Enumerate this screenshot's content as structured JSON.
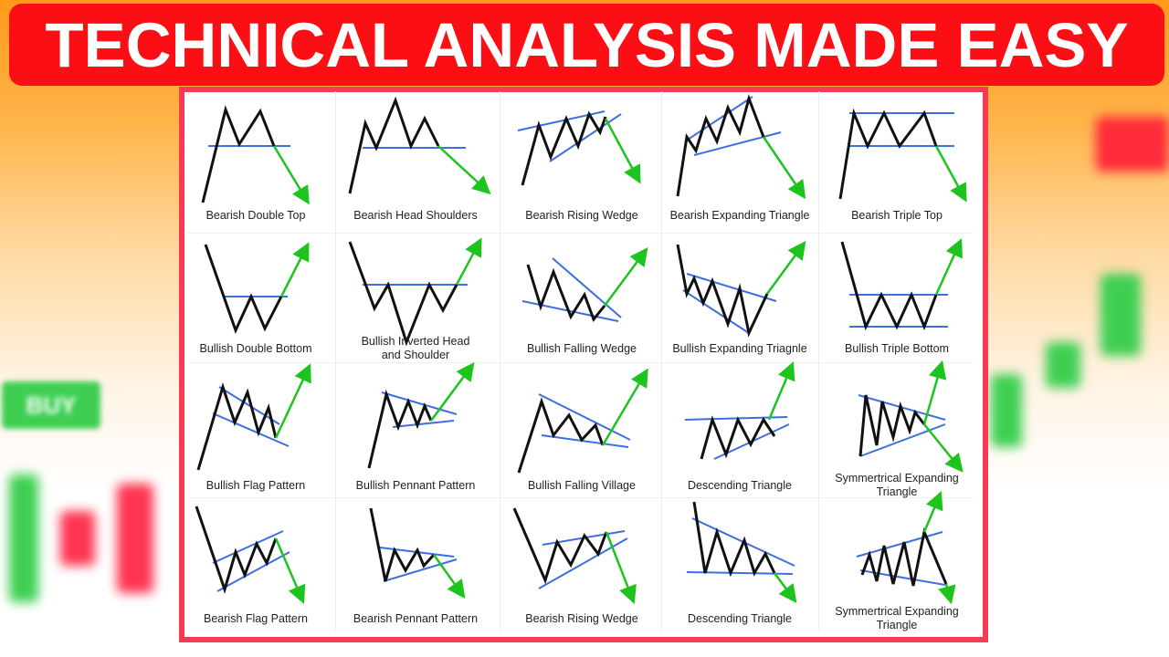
{
  "title": "TECHNICAL ANALYSIS MADE EASY",
  "background_sign": "BUY",
  "colors": {
    "banner": "#fb0f14",
    "card_border": "#f83a55",
    "price_line": "#111111",
    "trend_line": "#3d6fe0",
    "breakout_arrow": "#1ec41e"
  },
  "patterns": [
    {
      "label": "Bearish Double Top",
      "breakout": "down"
    },
    {
      "label": "Bearish Head Shoulders",
      "breakout": "down"
    },
    {
      "label": "Bearish Rising Wedge",
      "breakout": "down"
    },
    {
      "label": "Bearish Expanding Triangle",
      "breakout": "down"
    },
    {
      "label": "Bearish Triple Top",
      "breakout": "down"
    },
    {
      "label": "Bullish Double Bottom",
      "breakout": "up"
    },
    {
      "label": "Bullish Inverted Head and Shoulder",
      "breakout": "up"
    },
    {
      "label": "Bullish Falling Wedge",
      "breakout": "up"
    },
    {
      "label": "Bullish Expanding Triagnle",
      "breakout": "up"
    },
    {
      "label": "Bullish Triple Bottom",
      "breakout": "up"
    },
    {
      "label": "Bullish Flag Pattern",
      "breakout": "up"
    },
    {
      "label": "Bullish Pennant Pattern",
      "breakout": "up"
    },
    {
      "label": "Bullish Falling Village",
      "breakout": "up"
    },
    {
      "label": "Descending Triangle",
      "breakout": "up"
    },
    {
      "label": "Symmertrical Expanding Triangle",
      "breakout": "both"
    },
    {
      "label": "Bearish Flag Pattern",
      "breakout": "down"
    },
    {
      "label": "Bearish Pennant Pattern",
      "breakout": "down"
    },
    {
      "label": "Bearish Rising Wedge",
      "breakout": "down"
    },
    {
      "label": "Descending Triangle",
      "breakout": "down"
    },
    {
      "label": "Symmertrical Expanding Triangle",
      "breakout": "both"
    }
  ]
}
